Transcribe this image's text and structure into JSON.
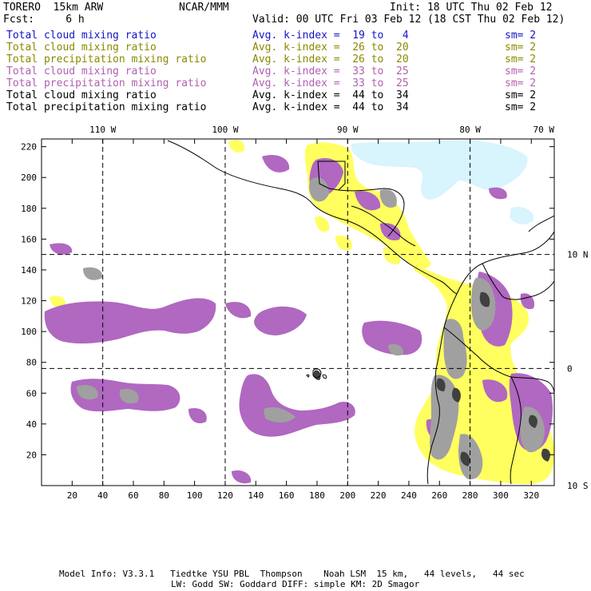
{
  "header": {
    "model": "TORERO  15km ARW",
    "org": "NCAR/MMM",
    "init": "Init: 18 UTC Thu 02 Feb 12",
    "fcst": "Fcst:     6 h",
    "valid": "Valid: 00 UTC Fri 03 Feb 12 (18 CST Thu 02 Feb 12)"
  },
  "legend": [
    {
      "field": "Total cloud mixing ratio",
      "range": "Avg. k-index =  19 to   4",
      "sm": "sm= 2",
      "color": "#1414c8"
    },
    {
      "field": "Total cloud mixing ratio",
      "range": "Avg. k-index =  26 to  20",
      "sm": "sm= 2",
      "color": "#8a8a00"
    },
    {
      "field": "Total precipitation mixing ratio",
      "range": "Avg. k-index =  26 to  20",
      "sm": "sm= 2",
      "color": "#8a8a00"
    },
    {
      "field": "Total cloud mixing ratio",
      "range": "Avg. k-index =  33 to  25",
      "sm": "sm= 2",
      "color": "#b060b0"
    },
    {
      "field": "Total precipitation mixing ratio",
      "range": "Avg. k-index =  33 to  25",
      "sm": "sm= 2",
      "color": "#b060b0"
    },
    {
      "field": "Total cloud mixing ratio",
      "range": "Avg. k-index =  44 to  34",
      "sm": "sm= 2",
      "color": "#000000"
    },
    {
      "field": "Total precipitation mixing ratio",
      "range": "Avg. k-index =  44 to  34",
      "sm": "sm= 2",
      "color": "#000000"
    }
  ],
  "map": {
    "x_ticks": [
      20,
      40,
      60,
      80,
      100,
      120,
      140,
      160,
      180,
      200,
      220,
      240,
      260,
      280,
      300,
      320
    ],
    "y_ticks": [
      20,
      40,
      60,
      80,
      100,
      120,
      140,
      160,
      180,
      200,
      220
    ],
    "x_range": [
      0,
      335
    ],
    "y_range": [
      0,
      225
    ],
    "lon_labels": [
      {
        "text": "110 W",
        "x": 40
      },
      {
        "text": "100 W",
        "x": 120
      },
      {
        "text": "90 W",
        "x": 200
      },
      {
        "text": "80 W",
        "x": 280
      },
      {
        "text": "70 W",
        "x": 335
      }
    ],
    "lon_lines": [
      40,
      120,
      200,
      280
    ],
    "lat_labels": [
      {
        "text": "10 N",
        "y": 150
      },
      {
        "text": "0",
        "y": 76
      },
      {
        "text": "10 S",
        "y": 0
      }
    ],
    "lat_lines": [
      150,
      76
    ],
    "colors": {
      "cyan": "#d8f4fc",
      "yellow": "#ffff60",
      "purple": "#b068c0",
      "gray": "#a0a0a0",
      "dark": "#404040"
    }
  },
  "footer": {
    "line1": "Model Info: V3.3.1   Tiedtke YSU PBL  Thompson    Noah LSM  15 km,   44 levels,   44 sec",
    "line2": "LW: Godd SW: Goddard DIFF: simple KM: 2D Smagor"
  }
}
